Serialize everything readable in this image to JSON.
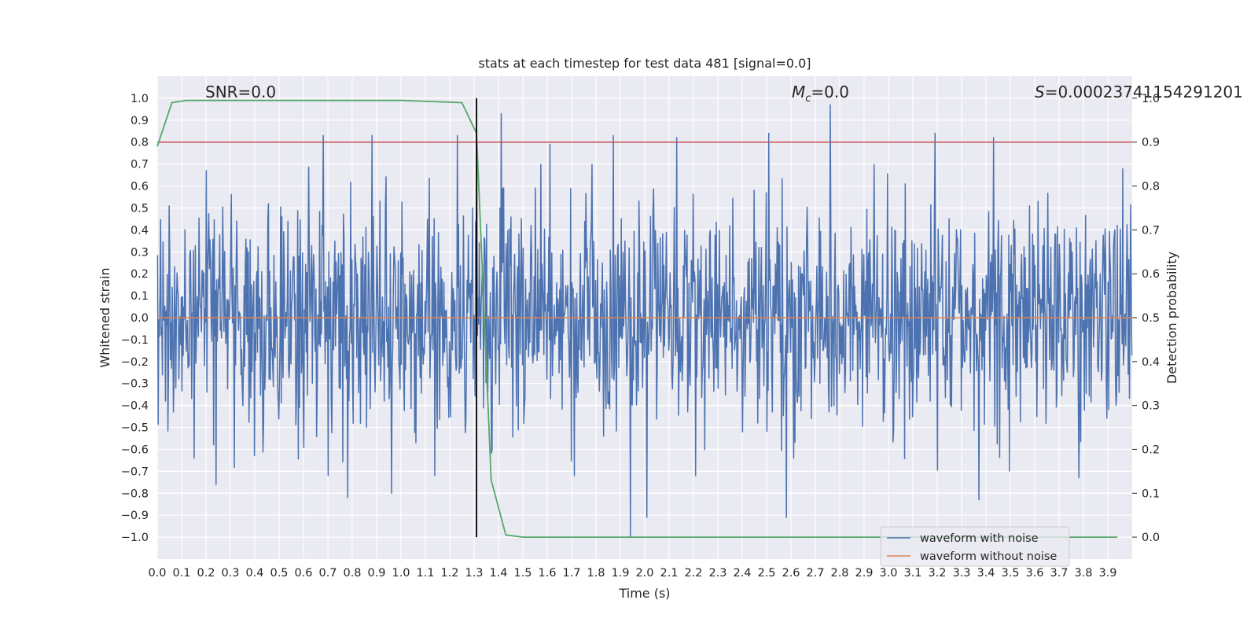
{
  "chart_data": {
    "type": "line",
    "title": "stats at each timestep for test data 481 [signal=0.0]",
    "xlabel": "Time (s)",
    "ylabel": "Whitened strain",
    "y2label": "Detection probability",
    "xlim": [
      0.0,
      4.0
    ],
    "ylim": [
      -1.1,
      1.1
    ],
    "y2lim": [
      -0.05,
      1.05
    ],
    "x_ticks": [
      "0.0",
      "0.1",
      "0.2",
      "0.3",
      "0.4",
      "0.5",
      "0.6",
      "0.7",
      "0.8",
      "0.9",
      "1.0",
      "1.1",
      "1.2",
      "1.3",
      "1.4",
      "1.5",
      "1.6",
      "1.7",
      "1.8",
      "1.9",
      "2.0",
      "2.1",
      "2.2",
      "2.3",
      "2.4",
      "2.5",
      "2.6",
      "2.7",
      "2.8",
      "2.9",
      "3.0",
      "3.1",
      "3.2",
      "3.3",
      "3.4",
      "3.5",
      "3.6",
      "3.7",
      "3.8",
      "3.9"
    ],
    "y_ticks": [
      "−1.0",
      "−0.9",
      "−0.8",
      "−0.7",
      "−0.6",
      "−0.5",
      "−0.4",
      "−0.3",
      "−0.2",
      "−0.1",
      "0.0",
      "0.1",
      "0.2",
      "0.3",
      "0.4",
      "0.5",
      "0.6",
      "0.7",
      "0.8",
      "0.9",
      "1.0"
    ],
    "y2_ticks": [
      "0.0",
      "0.1",
      "0.2",
      "0.3",
      "0.4",
      "0.5",
      "0.6",
      "0.7",
      "0.8",
      "0.9",
      "1.0"
    ],
    "grid": true,
    "legend_position": "bottom-right",
    "annotations": {
      "snr": "SNR=0.0",
      "mc_symbol": "M",
      "mc_subscript": "c",
      "mc_value": "=0.0",
      "s_symbol": "S",
      "s_value": "=0.00023741154291201"
    },
    "vertical_marker_x": 1.31,
    "threshold_y2": 0.9,
    "series": [
      {
        "name": "waveform with noise",
        "axis": "left",
        "color": "#4c72b0",
        "sample_count": 1600,
        "amplitude_range": [
          -1.0,
          0.97
        ],
        "peak_points": [
          {
            "x": 0.68,
            "y": 0.83
          },
          {
            "x": 0.88,
            "y": 0.83
          },
          {
            "x": 1.23,
            "y": 0.83
          },
          {
            "x": 1.41,
            "y": 0.93
          },
          {
            "x": 1.61,
            "y": 0.79
          },
          {
            "x": 1.87,
            "y": 0.83
          },
          {
            "x": 2.01,
            "y": 0.84
          },
          {
            "x": 2.13,
            "y": 0.82
          },
          {
            "x": 2.51,
            "y": 0.84
          },
          {
            "x": 2.76,
            "y": 0.97
          },
          {
            "x": 3.19,
            "y": 0.84
          },
          {
            "x": 3.43,
            "y": 0.82
          },
          {
            "x": 0.78,
            "y": -0.82
          },
          {
            "x": 0.96,
            "y": -0.8
          },
          {
            "x": 1.94,
            "y": -1.0
          },
          {
            "x": 2.01,
            "y": -0.91
          },
          {
            "x": 2.58,
            "y": -0.91
          },
          {
            "x": 3.37,
            "y": -0.83
          },
          {
            "x": 0.24,
            "y": -0.76
          },
          {
            "x": 3.78,
            "y": -0.73
          }
        ]
      },
      {
        "name": "waveform without noise",
        "axis": "left",
        "color": "#dd8452",
        "x": [
          0.0,
          4.0
        ],
        "y": [
          0.0,
          0.0
        ]
      },
      {
        "axis": "right",
        "color": "#55a868",
        "x": [
          0.0,
          0.06,
          0.12,
          0.25,
          0.5,
          1.0,
          1.25,
          1.31,
          1.37,
          1.43,
          1.5,
          2.0,
          3.0,
          3.94
        ],
        "y": [
          0.89,
          0.99,
          0.995,
          0.995,
          0.995,
          0.995,
          0.99,
          0.92,
          0.13,
          0.005,
          0.0,
          0.0,
          0.0,
          0.0
        ]
      },
      {
        "axis": "right",
        "color": "#c44e52",
        "x": [
          0.0,
          4.0
        ],
        "y": [
          0.9,
          0.9
        ]
      }
    ]
  }
}
